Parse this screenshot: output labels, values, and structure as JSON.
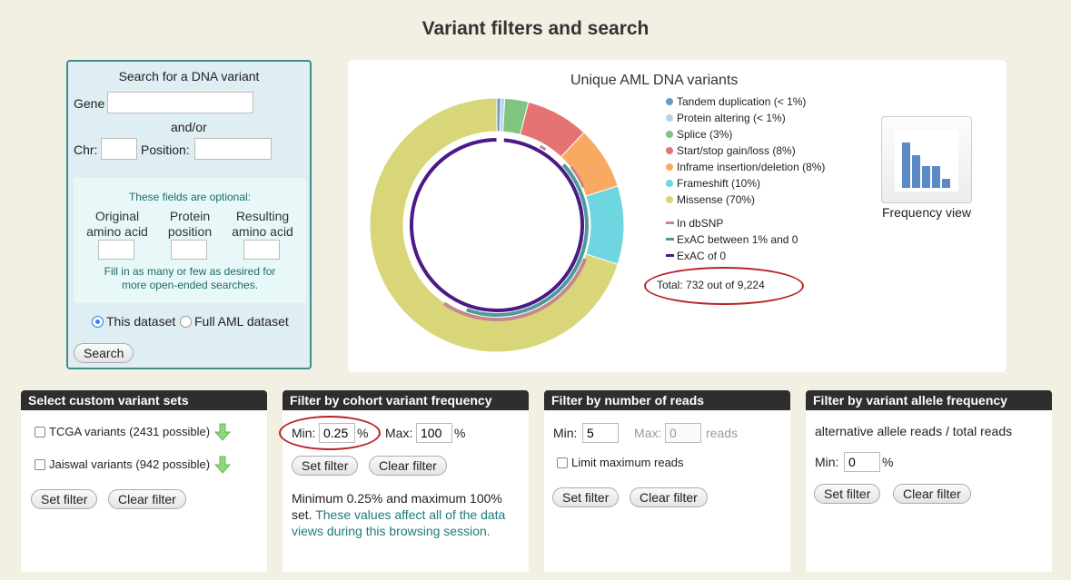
{
  "page_title": "Variant filters and search",
  "search": {
    "heading": "Search for a DNA variant",
    "gene_label": "Gene",
    "andor_label": "and/or",
    "chr_label": "Chr:",
    "position_label": "Position:",
    "optional_note": "These fields are optional:",
    "original_label_1": "Original",
    "original_label_2": "amino acid",
    "protein_label_1": "Protein",
    "protein_label_2": "position",
    "resulting_label_1": "Resulting",
    "resulting_label_2": "amino acid",
    "fill_note_1": "Fill in as many or few as desired for",
    "fill_note_2": "more open-ended searches.",
    "radio_this": "This dataset",
    "radio_full": "Full AML dataset",
    "search_button": "Search"
  },
  "chart": {
    "title": "Unique AML DNA variants",
    "legend": [
      {
        "label": "Tandem duplication (< 1%)",
        "color": "#6b9bc8"
      },
      {
        "label": "Protein altering (< 1%)",
        "color": "#b7d3ea"
      },
      {
        "label": "Splice (3%)",
        "color": "#7fc47f"
      },
      {
        "label": "Start/stop gain/loss (8%)",
        "color": "#e57373"
      },
      {
        "label": "Inframe insertion/deletion (8%)",
        "color": "#f8a962"
      },
      {
        "label": "Frameshift (10%)",
        "color": "#6dd6e0"
      },
      {
        "label": "Missense (70%)",
        "color": "#d9d67a"
      }
    ],
    "legend_bars": [
      {
        "label": "In dbSNP",
        "color": "#c4878f"
      },
      {
        "label": "ExAC between 1% and 0",
        "color": "#4e9a9a"
      },
      {
        "label": "ExAC of 0",
        "color": "#4b1a86"
      }
    ],
    "total": "Total: 732 out of 9,224",
    "frequency_view_label": "Frequency view"
  },
  "chart_data": {
    "type": "pie",
    "title": "Unique AML DNA variants",
    "categories": [
      "Tandem duplication",
      "Protein altering",
      "Splice",
      "Start/stop gain/loss",
      "Inframe insertion/deletion",
      "Frameshift",
      "Missense"
    ],
    "values": [
      0.5,
      0.5,
      3,
      8,
      8,
      10,
      70
    ],
    "legend_placement": "right"
  },
  "panels": {
    "custom_sets": {
      "header": "Select custom variant sets",
      "tcga": "TCGA variants (2431 possible)",
      "jaiswal": "Jaiswal variants (942 possible)",
      "set_button": "Set filter",
      "clear_button": "Clear filter"
    },
    "cohort": {
      "header": "Filter by cohort variant frequency",
      "min_label": "Min:",
      "min_value": "0.25",
      "max_label": "Max:",
      "max_value": "100",
      "pct": "%",
      "set_button": "Set filter",
      "clear_button": "Clear filter",
      "desc_1": "Minimum 0.25% and maximum 100%",
      "desc_2a": "set.",
      "desc_2b": "These values affect all of the data",
      "desc_3": "views during this browsing session."
    },
    "reads": {
      "header": "Filter by number of reads",
      "min_label": "Min:",
      "min_value": "5",
      "max_label": "Max:",
      "max_value": "0",
      "reads_label": "reads",
      "limit_label": "Limit maximum reads",
      "set_button": "Set filter",
      "clear_button": "Clear filter"
    },
    "vaf": {
      "header": "Filter by variant allele frequency",
      "desc": "alternative allele reads / total reads",
      "min_label": "Min:",
      "min_value": "0",
      "pct": "%",
      "set_button": "Set filter",
      "clear_button": "Clear filter"
    }
  },
  "icons": {
    "down_arrow_color": "#7fcf6f"
  }
}
